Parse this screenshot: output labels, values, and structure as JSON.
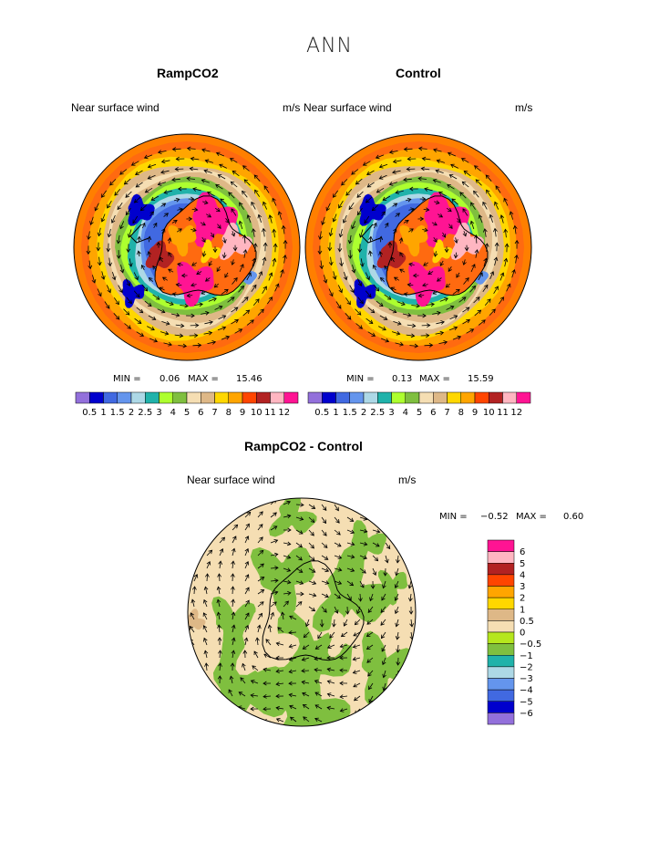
{
  "figure": {
    "title": "ANN"
  },
  "panels": [
    {
      "title": "RampCO2",
      "variable": "Near surface wind",
      "units": "m/s",
      "min_label": "MIN =",
      "min": "0.06",
      "max_label": "MAX =",
      "max": "15.46"
    },
    {
      "title": "Control",
      "variable": "Near surface wind",
      "units": "m/s",
      "min_label": "MIN =",
      "min": "0.13",
      "max_label": "MAX =",
      "max": "15.59"
    },
    {
      "title": "RampCO2 - Control",
      "variable": "Near surface wind",
      "units": "m/s",
      "min_label": "MIN =",
      "min": "−0.52",
      "max_label": "MAX =",
      "max": "0.60"
    }
  ],
  "colorbar_speed": {
    "colors": [
      "#9370db",
      "#0000cd",
      "#4169e1",
      "#6495ed",
      "#add8e6",
      "#20b2aa",
      "#adff2f",
      "#7fbf3f",
      "#f5deb3",
      "#deb887",
      "#ffd700",
      "#ffa500",
      "#ff4500",
      "#b22222",
      "#ffb6c1",
      "#ff1493"
    ],
    "labels": [
      "0.5",
      "1",
      "1.5",
      "2",
      "2.5",
      "3",
      "4",
      "5",
      "6",
      "7",
      "8",
      "9",
      "10",
      "11",
      "12"
    ]
  },
  "colorbar_diff": {
    "colors": [
      "#ff1493",
      "#ffb6c1",
      "#b22222",
      "#ff4500",
      "#ffa500",
      "#ffd700",
      "#deb887",
      "#f5deb3",
      "#b5e61d",
      "#7fbf3f",
      "#20b2aa",
      "#add8e6",
      "#6495ed",
      "#4169e1",
      "#0000cd",
      "#9370db"
    ],
    "labels": [
      "6",
      "5",
      "4",
      "3",
      "2",
      "1",
      "0.5",
      "0",
      "−0.5",
      "−1",
      "−2",
      "−3",
      "−4",
      "−5",
      "−6"
    ]
  }
}
